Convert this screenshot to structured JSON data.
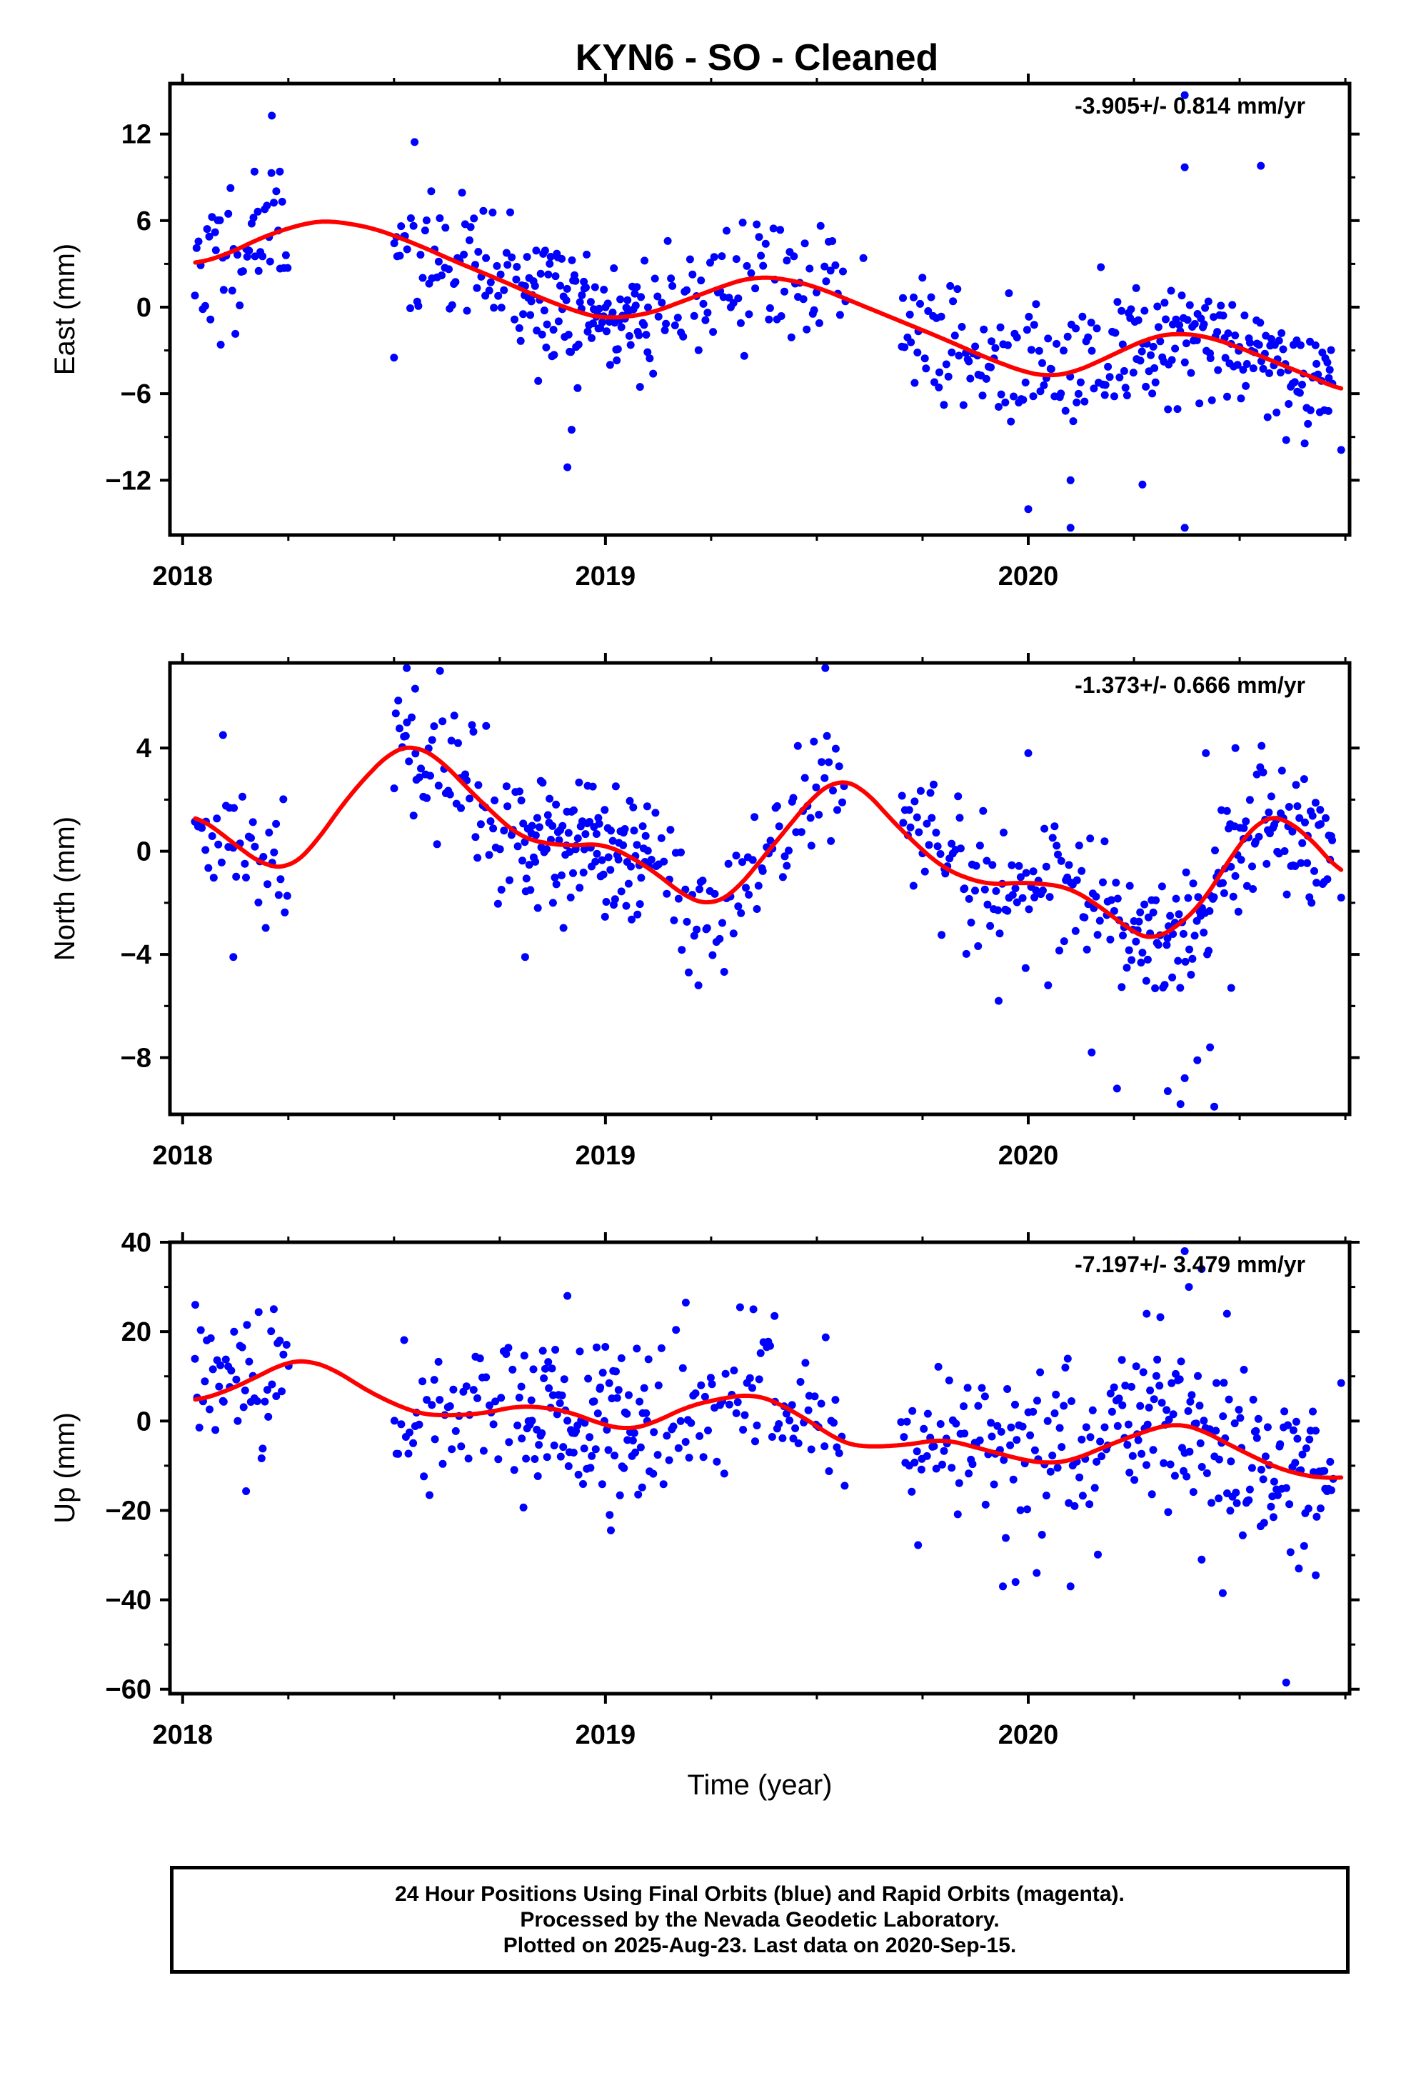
{
  "title": "KYN6  - SO - Cleaned",
  "x_axis_label": "Time (year)",
  "footer": {
    "line1": "24 Hour Positions Using Final Orbits (blue) and Rapid Orbits (magenta).",
    "line2": "Processed by the Nevada Geodetic Laboratory.",
    "line3": "Plotted on 2025-Aug-23. Last data on 2020-Sep-15."
  },
  "colors": {
    "data": "#0000ff",
    "model": "#ff0000",
    "frame": "#000000"
  },
  "chart_data": [
    {
      "type": "scatter",
      "ylabel": "East (mm)",
      "rate_text": "-3.905+/- 0.814 mm/yr",
      "xlim": [
        2017.97,
        2020.76
      ],
      "ylim": [
        -15.8,
        15.5
      ],
      "xticks": [
        2018,
        2019,
        2020
      ],
      "yticks": [
        -12,
        -6,
        0,
        6,
        12
      ],
      "yticklabels": [
        "−12",
        "−6",
        "0",
        "6",
        "12"
      ],
      "seed": 11,
      "segments": [
        [
          2018.03,
          2018.25,
          6
        ],
        [
          2018.5,
          2018.8,
          6
        ],
        [
          2018.8,
          2019.1,
          10
        ],
        [
          2019.1,
          2019.57,
          5
        ],
        [
          2019.7,
          2020.22,
          6
        ],
        [
          2020.22,
          2020.72,
          8
        ]
      ],
      "scatter_sd": 2.3,
      "outliers": [
        [
          2018.23,
          9.4
        ],
        [
          2018.17,
          9.4
        ],
        [
          2018.21,
          9.3
        ],
        [
          2018.09,
          -2.6
        ],
        [
          2018.91,
          -11.1
        ],
        [
          2018.92,
          -8.5
        ],
        [
          2018.5,
          -3.5
        ],
        [
          2020.37,
          9.7
        ],
        [
          2020.55,
          9.8
        ],
        [
          2020.37,
          14.7
        ],
        [
          2020.0,
          -14.0
        ],
        [
          2020.1,
          -15.3
        ],
        [
          2020.37,
          -15.3
        ],
        [
          2020.1,
          -12.0
        ],
        [
          2020.27,
          -12.3
        ],
        [
          2020.74,
          -9.9
        ],
        [
          2020.71,
          -7.2
        ],
        [
          2019.61,
          3.4
        ]
      ],
      "trend": {
        "t": [
          2018.03,
          2018.1,
          2018.2,
          2018.3,
          2018.35,
          2018.45,
          2018.55,
          2018.65,
          2018.75,
          2018.85,
          2018.95,
          2019.0,
          2019.1,
          2019.2,
          2019.3,
          2019.35,
          2019.42,
          2019.5,
          2019.6,
          2019.7,
          2019.8,
          2019.9,
          2020.0,
          2020.05,
          2020.1,
          2020.15,
          2020.2,
          2020.25,
          2020.3,
          2020.35,
          2020.42,
          2020.5,
          2020.6,
          2020.7,
          2020.74
        ],
        "v": [
          3.0,
          3.6,
          5.0,
          5.9,
          6.0,
          5.5,
          4.4,
          3.1,
          1.9,
          0.6,
          -0.5,
          -0.8,
          -0.5,
          0.6,
          1.7,
          2.1,
          2.0,
          1.4,
          0.2,
          -1.0,
          -2.2,
          -3.5,
          -4.6,
          -4.8,
          -4.6,
          -4.0,
          -3.3,
          -2.6,
          -2.0,
          -1.8,
          -2.0,
          -2.8,
          -4.0,
          -5.2,
          -5.8
        ]
      }
    },
    {
      "type": "scatter",
      "ylabel": "North (mm)",
      "rate_text": "-1.373+/- 0.666 mm/yr",
      "xlim": [
        2017.97,
        2020.76
      ],
      "ylim": [
        -10.2,
        7.3
      ],
      "xticks": [
        2018,
        2019,
        2020
      ],
      "yticks": [
        -8,
        -4,
        0,
        4
      ],
      "yticklabels": [
        "−8",
        "−4",
        "0",
        "4"
      ],
      "seed": 29,
      "segments": [
        [
          2018.03,
          2018.25,
          5
        ],
        [
          2018.5,
          2018.8,
          6
        ],
        [
          2018.8,
          2019.1,
          10
        ],
        [
          2019.1,
          2019.57,
          5
        ],
        [
          2019.7,
          2020.22,
          6
        ],
        [
          2020.22,
          2020.72,
          8
        ]
      ],
      "scatter_sd": 1.3,
      "outliers": [
        [
          2018.53,
          7.1
        ],
        [
          2018.55,
          6.3
        ],
        [
          2019.52,
          7.1
        ],
        [
          2018.12,
          -4.1
        ],
        [
          2018.81,
          -4.1
        ],
        [
          2019.22,
          -5.2
        ],
        [
          2019.93,
          -5.8
        ],
        [
          2020.15,
          -7.8
        ],
        [
          2020.21,
          -9.2
        ],
        [
          2020.33,
          -9.3
        ],
        [
          2020.36,
          -9.8
        ],
        [
          2020.44,
          -9.9
        ],
        [
          2020.4,
          -8.1
        ],
        [
          2020.43,
          -7.6
        ],
        [
          2020.37,
          -8.8
        ],
        [
          2020.48,
          -5.3
        ],
        [
          2020.0,
          3.8
        ],
        [
          2020.67,
          -2.0
        ],
        [
          2020.74,
          -1.8
        ],
        [
          2020.42,
          3.8
        ],
        [
          2020.49,
          4.0
        ]
      ],
      "trend": {
        "t": [
          2018.03,
          2018.1,
          2018.15,
          2018.2,
          2018.25,
          2018.3,
          2018.4,
          2018.5,
          2018.55,
          2018.6,
          2018.7,
          2018.8,
          2018.9,
          2019.0,
          2019.1,
          2019.2,
          2019.25,
          2019.3,
          2019.4,
          2019.5,
          2019.55,
          2019.6,
          2019.7,
          2019.8,
          2019.9,
          2020.0,
          2020.1,
          2020.2,
          2020.25,
          2020.3,
          2020.4,
          2020.5,
          2020.55,
          2020.6,
          2020.7,
          2020.74
        ],
        "v": [
          1.4,
          0.6,
          -0.1,
          -0.6,
          -0.7,
          0.0,
          2.3,
          4.0,
          4.1,
          3.7,
          2.0,
          0.5,
          0.2,
          0.3,
          -0.6,
          -1.9,
          -2.1,
          -1.7,
          0.3,
          2.3,
          2.8,
          2.6,
          0.8,
          -0.7,
          -1.3,
          -1.2,
          -1.4,
          -2.5,
          -3.2,
          -3.5,
          -2.3,
          0.3,
          1.3,
          1.4,
          0.0,
          -1.0
        ]
      }
    },
    {
      "type": "scatter",
      "ylabel": "Up (mm)",
      "rate_text": "-7.197+/- 3.479 mm/yr",
      "xlim": [
        2017.97,
        2020.76
      ],
      "ylim": [
        -61,
        40
      ],
      "xticks": [
        2018,
        2019,
        2020
      ],
      "yticks": [
        -60,
        -40,
        -20,
        0,
        20,
        40
      ],
      "yticklabels": [
        "−60",
        "−40",
        "−20",
        "0",
        "20",
        "40"
      ],
      "seed": 47,
      "segments": [
        [
          2018.03,
          2018.25,
          6
        ],
        [
          2018.5,
          2018.8,
          5
        ],
        [
          2018.8,
          2019.1,
          9
        ],
        [
          2019.1,
          2019.57,
          5
        ],
        [
          2019.7,
          2020.22,
          6
        ],
        [
          2020.22,
          2020.72,
          8
        ]
      ],
      "scatter_sd": 8.5,
      "outliers": [
        [
          2018.03,
          26.0
        ],
        [
          2018.15,
          -15.7
        ],
        [
          2018.91,
          28.0
        ],
        [
          2019.01,
          -21.0
        ],
        [
          2019.19,
          26.5
        ],
        [
          2019.35,
          25.0
        ],
        [
          2019.4,
          23.5
        ],
        [
          2019.94,
          -37.0
        ],
        [
          2019.97,
          -36.0
        ],
        [
          2020.1,
          -37.0
        ],
        [
          2020.02,
          -34.0
        ],
        [
          2020.37,
          38.0
        ],
        [
          2020.41,
          34.0
        ],
        [
          2020.47,
          24.0
        ],
        [
          2020.38,
          30.0
        ],
        [
          2020.64,
          -33.0
        ],
        [
          2020.68,
          -34.5
        ],
        [
          2020.61,
          -58.5
        ],
        [
          2020.74,
          8.5
        ],
        [
          2020.28,
          24.0
        ],
        [
          2020.41,
          -31.0
        ],
        [
          2020.46,
          -38.5
        ]
      ],
      "trend": {
        "t": [
          2018.03,
          2018.1,
          2018.2,
          2018.25,
          2018.3,
          2018.35,
          2018.45,
          2018.55,
          2018.6,
          2018.7,
          2018.8,
          2018.9,
          2019.0,
          2019.05,
          2019.1,
          2019.2,
          2019.3,
          2019.35,
          2019.4,
          2019.5,
          2019.55,
          2019.6,
          2019.7,
          2019.8,
          2019.9,
          2020.0,
          2020.05,
          2020.1,
          2020.2,
          2020.3,
          2020.35,
          2020.4,
          2020.5,
          2020.6,
          2020.7,
          2020.74
        ],
        "v": [
          4.5,
          6.5,
          11.0,
          13.5,
          13.5,
          12.0,
          6.0,
          1.8,
          1.2,
          1.5,
          3.5,
          2.5,
          -1.0,
          -2.0,
          -1.0,
          3.5,
          5.5,
          6.0,
          4.5,
          -1.0,
          -4.5,
          -5.8,
          -5.5,
          -4.0,
          -6.5,
          -9.0,
          -9.5,
          -9.0,
          -5.0,
          -1.5,
          -0.5,
          -1.5,
          -6.5,
          -11.0,
          -13.0,
          -12.5
        ]
      }
    }
  ]
}
